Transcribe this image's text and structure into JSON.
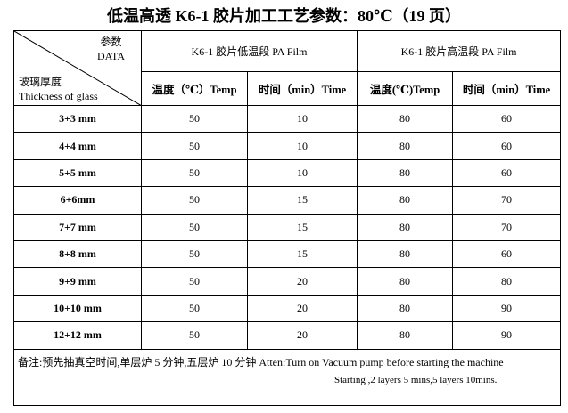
{
  "title": "低温高透 K6-1 胶片加工工艺参数：80℃（19 页）",
  "header": {
    "corner_top": "参数",
    "corner_top_en": "DATA",
    "corner_bottom": "玻璃厚度",
    "corner_bottom_en": "Thickness of glass",
    "groups": [
      "K6-1 胶片低温段 PA Film",
      "K6-1 胶片高温段 PA Film"
    ],
    "columns": [
      "温度（℃）Temp",
      "时间（min）Time",
      "温度(℃)Temp",
      "时间（min）Time"
    ]
  },
  "rows": [
    [
      "3+3 mm",
      50,
      10,
      80,
      60
    ],
    [
      "4+4 mm",
      50,
      10,
      80,
      60
    ],
    [
      "5+5 mm",
      50,
      10,
      80,
      60
    ],
    [
      "6+6mm",
      50,
      15,
      80,
      70
    ],
    [
      "7+7 mm",
      50,
      15,
      80,
      70
    ],
    [
      "8+8 mm",
      50,
      15,
      80,
      60
    ],
    [
      "9+9 mm",
      50,
      20,
      80,
      80
    ],
    [
      "10+10 mm",
      50,
      20,
      80,
      90
    ],
    [
      "12+12 mm",
      50,
      20,
      80,
      90
    ]
  ],
  "note": [
    "备注:预先抽真空时间,单层炉 5 分钟,五层炉 10 分钟 Atten:Turn on Vacuum pump before starting the machine",
    "Starting ,2 layers 5 mins,5 layers 10mins."
  ]
}
